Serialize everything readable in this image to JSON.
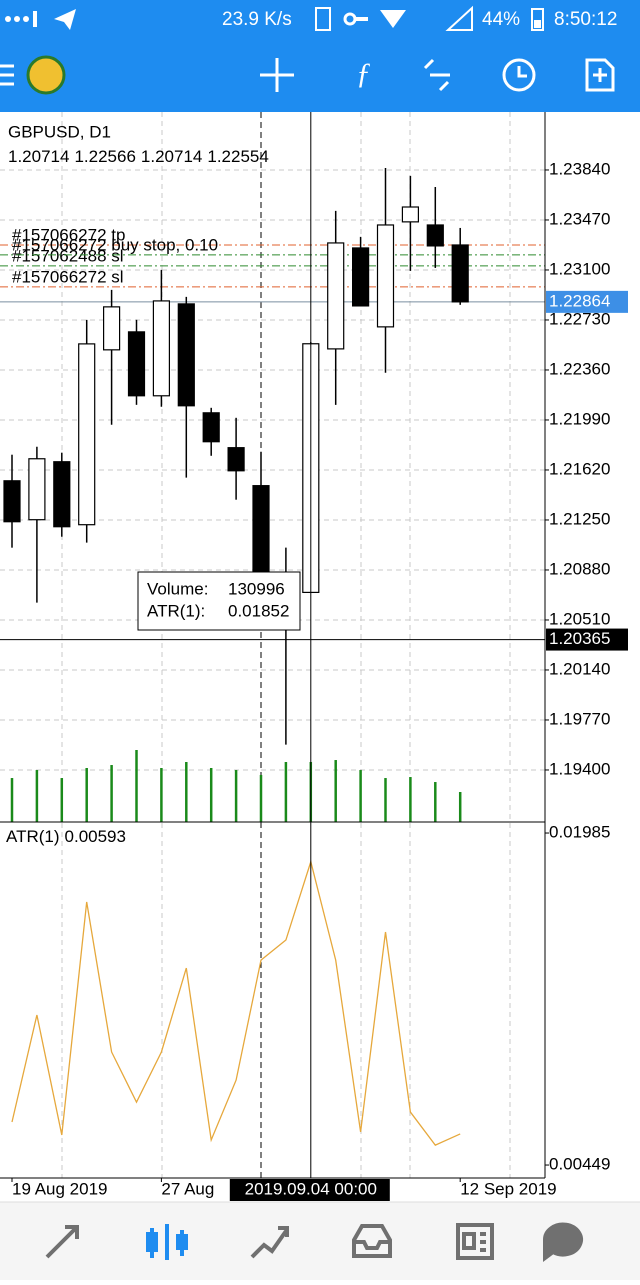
{
  "status_bar": {
    "speed": "23.9 K/s",
    "battery": "44%",
    "time": "8:50:12"
  },
  "chart_data": [
    {
      "type": "candlestick",
      "title": "GBPUSD, D1",
      "x": [
        "2019-08-19",
        "2019-08-20",
        "2019-08-21",
        "2019-08-22",
        "2019-08-23",
        "2019-08-26",
        "2019-08-27",
        "2019-08-28",
        "2019-08-29",
        "2019-08-30",
        "2019-09-02",
        "2019-09-03",
        "2019-09-04",
        "2019-09-05",
        "2019-09-06",
        "2019-09-09",
        "2019-09-10",
        "2019-09-11",
        "2019-09-12"
      ],
      "open": [
        1.2154,
        1.21252,
        1.21681,
        1.21215,
        1.22509,
        1.22642,
        1.22169,
        1.22849,
        1.22043,
        1.21785,
        1.21504,
        1.2082,
        1.20714,
        1.22516,
        1.23263,
        1.22679,
        1.23456,
        1.23433,
        1.23285
      ],
      "high": [
        1.21733,
        1.21792,
        1.21748,
        1.22731,
        1.22953,
        1.22731,
        1.23101,
        1.22901,
        1.2208,
        1.22006,
        1.21755,
        1.21045,
        1.22566,
        1.23537,
        1.23345,
        1.23855,
        1.23796,
        1.23714,
        1.23411
      ],
      "low": [
        1.21045,
        1.20638,
        1.21126,
        1.21082,
        1.21955,
        1.22102,
        1.22088,
        1.21563,
        1.21725,
        1.214,
        1.20808,
        1.19588,
        1.20714,
        1.22102,
        1.22834,
        1.22339,
        1.23093,
        1.23115,
        1.22842
      ],
      "close": [
        1.21237,
        1.21703,
        1.212,
        1.22553,
        1.22827,
        1.22169,
        1.22871,
        1.22095,
        1.21829,
        1.21614,
        1.20838,
        1.2072,
        1.22554,
        1.233,
        1.22834,
        1.23433,
        1.23566,
        1.23278,
        1.22864
      ],
      "ylim": [
        1.19015,
        1.24269
      ],
      "yticks": [
        {
          "value": 1.2384,
          "label": "1.23840"
        },
        {
          "value": 1.2347,
          "label": "1.23470"
        },
        {
          "value": 1.231,
          "label": "1.23100"
        },
        {
          "value": 1.2273,
          "label": "1.22730"
        },
        {
          "value": 1.2236,
          "label": "1.22360"
        },
        {
          "value": 1.2199,
          "label": "1.21990"
        },
        {
          "value": 1.2162,
          "label": "1.21620"
        },
        {
          "value": 1.2125,
          "label": "1.21250"
        },
        {
          "value": 1.2088,
          "label": "1.20880"
        },
        {
          "value": 1.2051,
          "label": "1.20510"
        },
        {
          "value": 1.2014,
          "label": "1.20140"
        },
        {
          "value": 1.1977,
          "label": "1.19770"
        },
        {
          "value": 1.194,
          "label": "1.19400"
        }
      ],
      "grid": true,
      "orders": [
        {
          "label": "#157062488 sl",
          "price": 1.2313,
          "color": "#2e8b2e"
        },
        {
          "label": "#157066272 tp",
          "price": 1.23285,
          "color": "#e0602e"
        },
        {
          "label": "#157066272 buy stop, 0.10",
          "price": 1.23212,
          "color": "#2e8b2e"
        },
        {
          "label": "#157066272 sl",
          "price": 1.22975,
          "color": "#e0602e"
        }
      ],
      "crosshair": {
        "x": "2019-09-04",
        "label": "2019.09.04 00:00",
        "price": 1.20365
      },
      "tooltip": {
        "labels": [
          "Volume:",
          "ATR(1):"
        ]
      }
    },
    {
      "type": "bar",
      "name": "Volume",
      "color": "#1a8a1a",
      "x": [
        "2019-08-19",
        "2019-08-20",
        "2019-08-21",
        "2019-08-22",
        "2019-08-23",
        "2019-08-26",
        "2019-08-27",
        "2019-08-28",
        "2019-08-29",
        "2019-08-30",
        "2019-09-02",
        "2019-09-03",
        "2019-09-04",
        "2019-09-05",
        "2019-09-06",
        "2019-09-09",
        "2019-09-10",
        "2019-09-11",
        "2019-09-12"
      ],
      "values": [
        96000,
        113500,
        96000,
        117900,
        124400,
        157200,
        117900,
        131000,
        117900,
        113500,
        102600,
        131000,
        130996,
        135300,
        113500,
        96000,
        98200,
        87300,
        65500
      ]
    },
    {
      "type": "line",
      "name": "ATR(1)",
      "color": "#e6a83c",
      "x": [
        "2019-08-19",
        "2019-08-20",
        "2019-08-21",
        "2019-08-22",
        "2019-08-23",
        "2019-08-26",
        "2019-08-27",
        "2019-08-28",
        "2019-08-29",
        "2019-08-30",
        "2019-09-02",
        "2019-09-03",
        "2019-09-04",
        "2019-09-05",
        "2019-09-06",
        "2019-09-09",
        "2019-09-10",
        "2019-09-11",
        "2019-09-12"
      ],
      "values": [
        0.00648,
        0.01143,
        0.00588,
        0.01666,
        0.00972,
        0.0074,
        0.00972,
        0.0136,
        0.00565,
        0.00842,
        0.01397,
        0.0149,
        0.01852,
        0.01397,
        0.00602,
        0.01527,
        0.00694,
        0.00541,
        0.00593
      ],
      "ylim": [
        0.00389,
        0.02036
      ],
      "yticks": [
        0.01985,
        0.00449
      ],
      "xticks": [
        {
          "value": "2019-08-19",
          "label": "19 Aug 2019"
        },
        {
          "value": "2019-08-27",
          "label": "27 Aug"
        },
        {
          "value": "2019-09-12",
          "label": "12 Sep 2019"
        }
      ]
    }
  ]
}
